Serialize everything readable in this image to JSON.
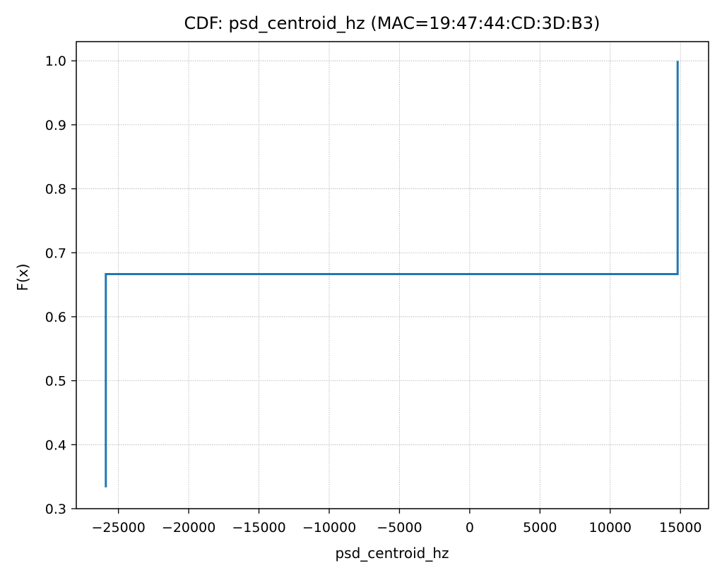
{
  "chart_data": {
    "type": "line",
    "title": "CDF: psd_centroid_hz (MAC=19:47:44:CD:3D:B3)",
    "xlabel": "psd_centroid_hz",
    "ylabel": "F(x)",
    "xlim": [
      -28000,
      17000
    ],
    "ylim": [
      0.3,
      1.03
    ],
    "xticks": [
      -25000,
      -20000,
      -15000,
      -10000,
      -5000,
      0,
      5000,
      10000,
      15000
    ],
    "xtick_labels": [
      "−25000",
      "−20000",
      "−15000",
      "−10000",
      "−5000",
      "0",
      "5000",
      "10000",
      "15000"
    ],
    "yticks": [
      0.3,
      0.4,
      0.5,
      0.6,
      0.7,
      0.8,
      0.9,
      1.0
    ],
    "ytick_labels": [
      "0.3",
      "0.4",
      "0.5",
      "0.6",
      "0.7",
      "0.8",
      "0.9",
      "1.0"
    ],
    "grid": true,
    "step": "post",
    "series": [
      {
        "color": "#1f77b4",
        "x": [
          -25900,
          -25900,
          14800,
          14800
        ],
        "y": [
          0.3333,
          0.6667,
          0.6667,
          1.0
        ]
      }
    ]
  }
}
